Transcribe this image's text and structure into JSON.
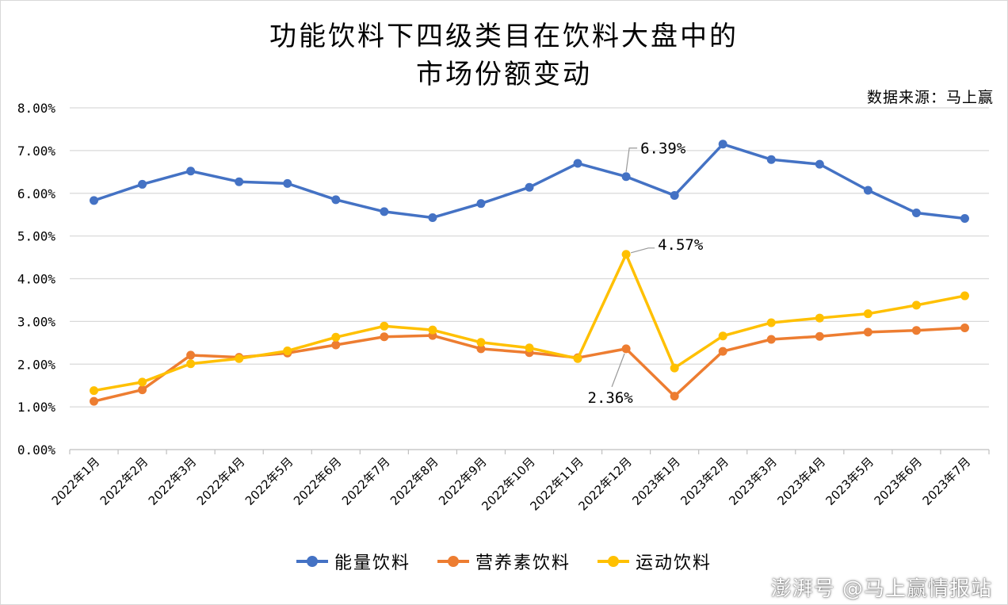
{
  "title_lines": [
    "功能饮料下四级类目在饮料大盘中的",
    "市场份额变动"
  ],
  "source_note": "数据来源：马上赢",
  "watermark": "澎湃号 @马上赢情报站",
  "colors": {
    "energy": "#4472C4",
    "nutrition": "#ED7D31",
    "sports": "#FFC000",
    "grid": "#d9d9d9",
    "axis": "#bfbfbf"
  },
  "chart_data": {
    "type": "line",
    "title": "功能饮料下四级类目在饮料大盘中的市场份额变动",
    "categories": [
      "2022年1月",
      "2022年2月",
      "2022年3月",
      "2022年4月",
      "2022年5月",
      "2022年6月",
      "2022年7月",
      "2022年8月",
      "2022年9月",
      "2022年10月",
      "2022年11月",
      "2022年12月",
      "2023年1月",
      "2023年2月",
      "2023年3月",
      "2023年4月",
      "2023年5月",
      "2023年6月",
      "2023年7月"
    ],
    "ylim": [
      0,
      8
    ],
    "yticks": [
      "0.00%",
      "1.00%",
      "2.00%",
      "3.00%",
      "4.00%",
      "5.00%",
      "6.00%",
      "7.00%",
      "8.00%"
    ],
    "grid": true,
    "legend": "bottom",
    "series": [
      {
        "name": "能量饮料",
        "key": "energy",
        "values": [
          5.83,
          6.21,
          6.52,
          6.27,
          6.23,
          5.85,
          5.57,
          5.43,
          5.76,
          6.14,
          6.7,
          6.39,
          5.95,
          7.15,
          6.79,
          6.68,
          6.07,
          5.54,
          5.41
        ]
      },
      {
        "name": "营养素饮料",
        "key": "nutrition",
        "values": [
          1.13,
          1.4,
          2.21,
          2.16,
          2.26,
          2.45,
          2.64,
          2.67,
          2.36,
          2.27,
          2.15,
          2.36,
          1.25,
          2.3,
          2.58,
          2.65,
          2.75,
          2.79,
          2.85
        ]
      },
      {
        "name": "运动饮料",
        "key": "sports",
        "values": [
          1.38,
          1.58,
          2.01,
          2.13,
          2.31,
          2.63,
          2.89,
          2.8,
          2.51,
          2.38,
          2.13,
          4.57,
          1.91,
          2.66,
          2.97,
          3.08,
          3.18,
          3.38,
          3.6
        ]
      }
    ],
    "annotations": [
      {
        "series": "energy",
        "index": 11,
        "text": "6.39%"
      },
      {
        "series": "sports",
        "index": 11,
        "text": "4.57%"
      },
      {
        "series": "nutrition",
        "index": 11,
        "text": "2.36%"
      }
    ]
  }
}
